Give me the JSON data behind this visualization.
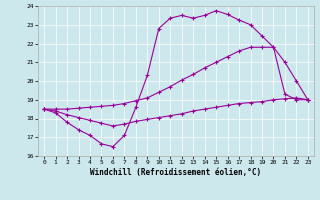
{
  "xlabel": "Windchill (Refroidissement éolien,°C)",
  "background_color": "#cce8ec",
  "line_color": "#990099",
  "xlim": [
    -0.5,
    23.5
  ],
  "ylim": [
    16,
    24
  ],
  "yticks": [
    16,
    17,
    18,
    19,
    20,
    21,
    22,
    23,
    24
  ],
  "xticks": [
    0,
    1,
    2,
    3,
    4,
    5,
    6,
    7,
    8,
    9,
    10,
    11,
    12,
    13,
    14,
    15,
    16,
    17,
    18,
    19,
    20,
    21,
    22,
    23
  ],
  "line1_x": [
    0,
    1,
    2,
    3,
    4,
    5,
    6,
    7,
    8,
    9,
    10,
    11,
    12,
    13,
    14,
    15,
    16,
    17,
    18,
    19,
    20,
    21,
    22,
    23
  ],
  "line1_y": [
    18.5,
    18.3,
    17.8,
    17.4,
    17.1,
    16.65,
    16.5,
    17.1,
    18.6,
    20.3,
    22.8,
    23.35,
    23.5,
    23.35,
    23.5,
    23.75,
    23.55,
    23.25,
    23.0,
    22.4,
    21.8,
    19.3,
    19.0,
    19.0
  ],
  "line2_x": [
    0,
    1,
    2,
    3,
    4,
    5,
    6,
    7,
    8,
    9,
    10,
    11,
    12,
    13,
    14,
    15,
    16,
    17,
    18,
    19,
    20,
    21,
    22,
    23
  ],
  "line2_y": [
    18.5,
    18.4,
    18.2,
    18.05,
    17.9,
    17.75,
    17.6,
    17.7,
    17.85,
    17.95,
    18.05,
    18.15,
    18.25,
    18.4,
    18.5,
    18.6,
    18.7,
    18.8,
    18.85,
    18.9,
    19.0,
    19.05,
    19.1,
    19.0
  ],
  "line3_x": [
    0,
    1,
    2,
    3,
    4,
    5,
    6,
    7,
    8,
    9,
    10,
    11,
    12,
    13,
    14,
    15,
    16,
    17,
    18,
    19,
    20,
    21,
    22,
    23
  ],
  "line3_y": [
    18.5,
    18.5,
    18.5,
    18.55,
    18.6,
    18.65,
    18.7,
    18.8,
    18.95,
    19.1,
    19.4,
    19.7,
    20.05,
    20.35,
    20.7,
    21.0,
    21.3,
    21.6,
    21.8,
    21.8,
    21.8,
    21.0,
    20.0,
    19.0
  ]
}
